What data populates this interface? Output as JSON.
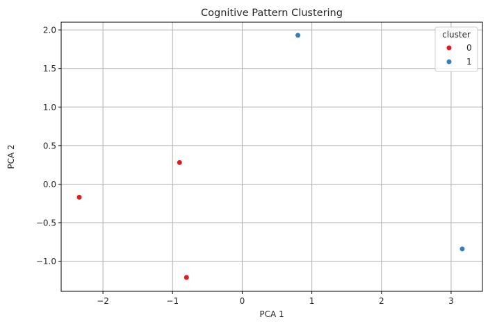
{
  "chart_data": {
    "type": "scatter",
    "title": "Cognitive Pattern Clustering",
    "xlabel": "PCA 1",
    "ylabel": "PCA 2",
    "xlim": [
      -2.6,
      3.45
    ],
    "ylim": [
      -1.39,
      2.1
    ],
    "xticks": [
      -2,
      -1,
      0,
      1,
      2,
      3
    ],
    "xtick_labels": [
      "−2",
      "−1",
      "0",
      "1",
      "2",
      "3"
    ],
    "yticks": [
      -1.0,
      -0.5,
      0.0,
      0.5,
      1.0,
      1.5,
      2.0
    ],
    "ytick_labels": [
      "−1.0",
      "−0.5",
      "0.0",
      "0.5",
      "1.0",
      "1.5",
      "2.0"
    ],
    "grid": true,
    "legend": {
      "title": "cluster",
      "placement": "top-right"
    },
    "series": [
      {
        "name": "0",
        "color": "#e41a1c",
        "points": [
          [
            -2.34,
            -0.17
          ],
          [
            -0.9,
            0.28
          ],
          [
            -0.8,
            -1.21
          ]
        ]
      },
      {
        "name": "1",
        "color": "#377eb8",
        "points": [
          [
            0.8,
            1.93
          ],
          [
            3.16,
            -0.84
          ]
        ]
      }
    ]
  }
}
